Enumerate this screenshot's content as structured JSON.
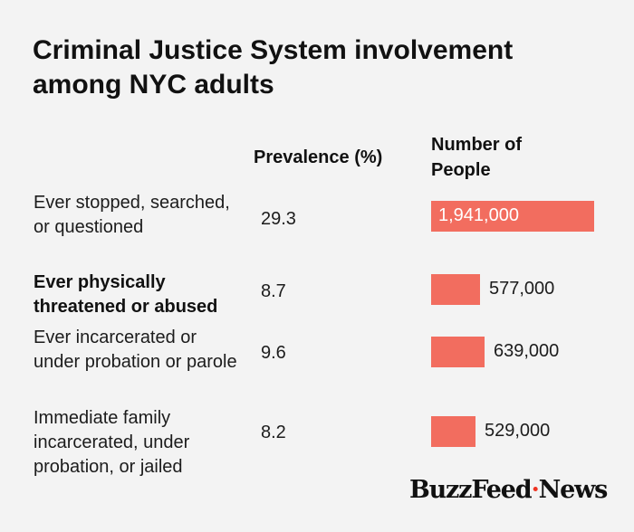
{
  "title": "Criminal Justice System involvement among NYC adults",
  "headers": {
    "prevalence": "Prevalence (%)",
    "number": "Number of People"
  },
  "chart_data": {
    "type": "table",
    "title": "Criminal Justice System involvement among NYC adults",
    "columns": [
      "Prevalence (%)",
      "Number of People"
    ],
    "rows": [
      {
        "label": "Ever stopped, searched, or questioned",
        "prevalence": "29.3",
        "people": 1941000,
        "people_label": "1,941,000",
        "bold": false
      },
      {
        "label": "Ever physically threatened or abused",
        "prevalence": "8.7",
        "people": 577000,
        "people_label": "577,000",
        "bold": true
      },
      {
        "label": "Ever incarcerated or under probation or parole",
        "prevalence": "9.6",
        "people": 639000,
        "people_label": "639,000",
        "bold": false
      },
      {
        "label": "Immediate family incarcerated, under probation, or jailed",
        "prevalence": "8.2",
        "people": 529000,
        "people_label": "529,000",
        "bold": false
      }
    ],
    "bar_color": "#f26d5f"
  },
  "logo": {
    "brand": "BuzzFeed",
    "dot": "·",
    "section": "News",
    "dot_color": "#ee3322"
  }
}
